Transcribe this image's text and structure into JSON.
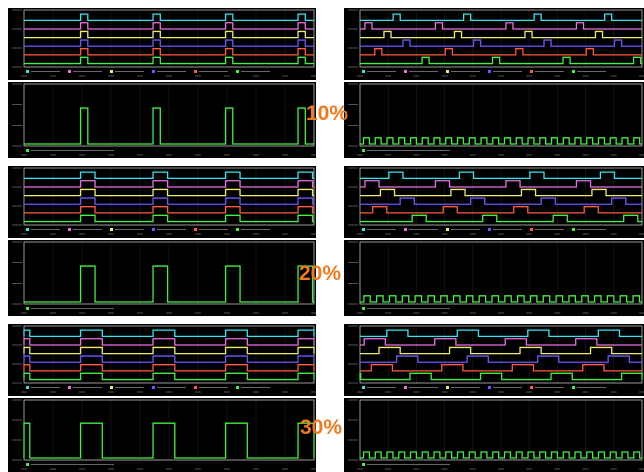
{
  "colors": {
    "background": "#000000",
    "grid": "#1e1e1e",
    "border": "#bdbdbd",
    "axis_text": "#8a8a8a",
    "label": "#f07a1c",
    "signals": [
      "#33e6f2",
      "#ee6ee6",
      "#f0ec6a",
      "#6a58ff",
      "#ff5a3c",
      "#44ee44"
    ],
    "output": "#44ee44"
  },
  "rows": [
    {
      "label": "10%",
      "duty": 0.1,
      "left": {
        "phase": [
          0,
          0,
          0,
          0,
          0,
          0
        ],
        "pulses": 4,
        "out_count": 4
      },
      "right": {
        "phase": [
          0.47,
          0.07,
          0.34,
          0.61,
          0.21,
          0.88
        ],
        "pulses": 4,
        "out_count": 24
      }
    },
    {
      "label": "20%",
      "duty": 0.2,
      "left": {
        "phase": [
          0,
          0,
          0,
          0,
          0,
          0
        ],
        "pulses": 4,
        "out_count": 4
      },
      "right": {
        "phase": [
          0.41,
          0.07,
          0.29,
          0.57,
          0.18,
          0.74
        ],
        "pulses": 4,
        "out_count": 22
      }
    },
    {
      "label": "30%",
      "duty": 0.3,
      "left": {
        "phase": [
          0,
          0,
          0,
          0,
          0,
          0
        ],
        "pulses": 4,
        "out_count": 4
      },
      "right": {
        "phase": [
          0.38,
          0.06,
          0.27,
          0.52,
          0.16,
          0.71
        ],
        "pulses": 4,
        "out_count": 24
      }
    }
  ]
}
